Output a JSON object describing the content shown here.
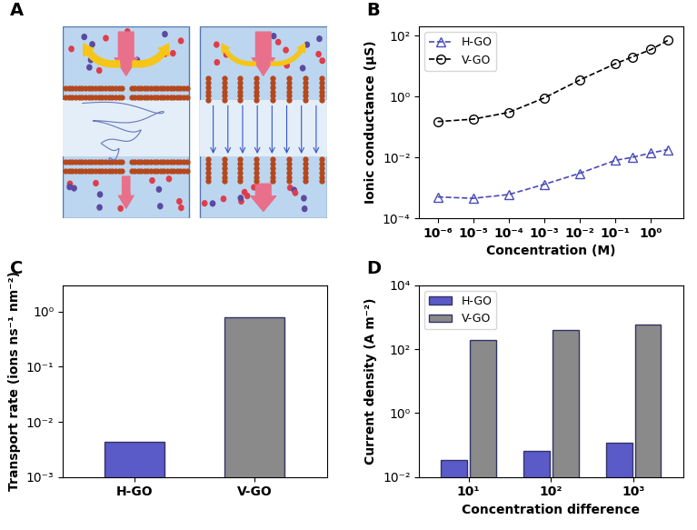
{
  "chart_data": [
    {
      "type": "diagram",
      "title": "A"
    },
    {
      "type": "line",
      "title": "B",
      "x_label": "Concentration (M)",
      "y_label": "Ionic conductance (µS)",
      "log": true,
      "legend": "upper left",
      "xlim": [
        3e-07,
        8
      ],
      "ylim": [
        0.0001,
        200
      ],
      "xticks": [
        {
          "value": 1e-06,
          "label": "10⁻⁶"
        },
        {
          "value": 1e-05,
          "label": "10⁻⁵"
        },
        {
          "value": 0.0001,
          "label": "10⁻⁴"
        },
        {
          "value": 0.001,
          "label": "10⁻³"
        },
        {
          "value": 0.01,
          "label": "10⁻²"
        },
        {
          "value": 0.1,
          "label": "10⁻¹"
        },
        {
          "value": 1,
          "label": "10⁰"
        }
      ],
      "yticks": [
        {
          "value": 0.0001,
          "label": "10⁻⁴"
        },
        {
          "value": 0.01,
          "label": "10⁻²"
        },
        {
          "value": 1,
          "label": "10⁰"
        },
        {
          "value": 100,
          "label": "10²"
        }
      ],
      "series": [
        {
          "name": "H-GO",
          "color": "#4a4ab8",
          "marker": "triangle",
          "line_style": "dashed",
          "x": [
            1e-06,
            1e-05,
            0.0001,
            0.001,
            0.01,
            0.1,
            0.3,
            1,
            3
          ],
          "values": [
            0.0005,
            0.00045,
            0.0006,
            0.0013,
            0.003,
            0.008,
            0.01,
            0.014,
            0.018
          ]
        },
        {
          "name": "V-GO",
          "color": "#000000",
          "marker": "circle",
          "line_style": "dashed",
          "x": [
            1e-06,
            1e-05,
            0.0001,
            0.001,
            0.01,
            0.1,
            0.3,
            1,
            3
          ],
          "values": [
            0.15,
            0.18,
            0.3,
            0.9,
            3.5,
            12,
            20,
            35,
            70
          ]
        }
      ]
    },
    {
      "type": "bar",
      "title": "C",
      "y_label": "Transport rate (ions ns⁻¹ nm⁻²)",
      "log": "y",
      "categories": [
        "H-GO",
        "V-GO"
      ],
      "values": [
        0.0043,
        0.8
      ],
      "colors": [
        "#5a5ac8",
        "#8a8a8a"
      ],
      "ylim": [
        0.001,
        3
      ],
      "yticks": [
        {
          "value": 0.001,
          "label": "10⁻³"
        },
        {
          "value": 0.01,
          "label": "10⁻²"
        },
        {
          "value": 0.1,
          "label": "10⁻¹"
        },
        {
          "value": 1,
          "label": "10⁰"
        }
      ]
    },
    {
      "type": "bar",
      "title": "D",
      "x_label": "Concentration difference",
      "y_label": "Current density (A m⁻²)",
      "log": "y",
      "legend": "upper left",
      "categories": [
        "10¹",
        "10²",
        "10³"
      ],
      "ylim": [
        0.01,
        10000
      ],
      "yticks": [
        {
          "value": 0.01,
          "label": "10⁻²"
        },
        {
          "value": 1,
          "label": "10⁰"
        },
        {
          "value": 100,
          "label": "10²"
        },
        {
          "value": 10000,
          "label": "10⁴"
        }
      ],
      "series": [
        {
          "name": "H-GO",
          "color": "#5a5ac8",
          "values": [
            0.035,
            0.065,
            0.12
          ]
        },
        {
          "name": "V-GO",
          "color": "#8a8a8a",
          "values": [
            200,
            400,
            600
          ]
        }
      ]
    }
  ]
}
